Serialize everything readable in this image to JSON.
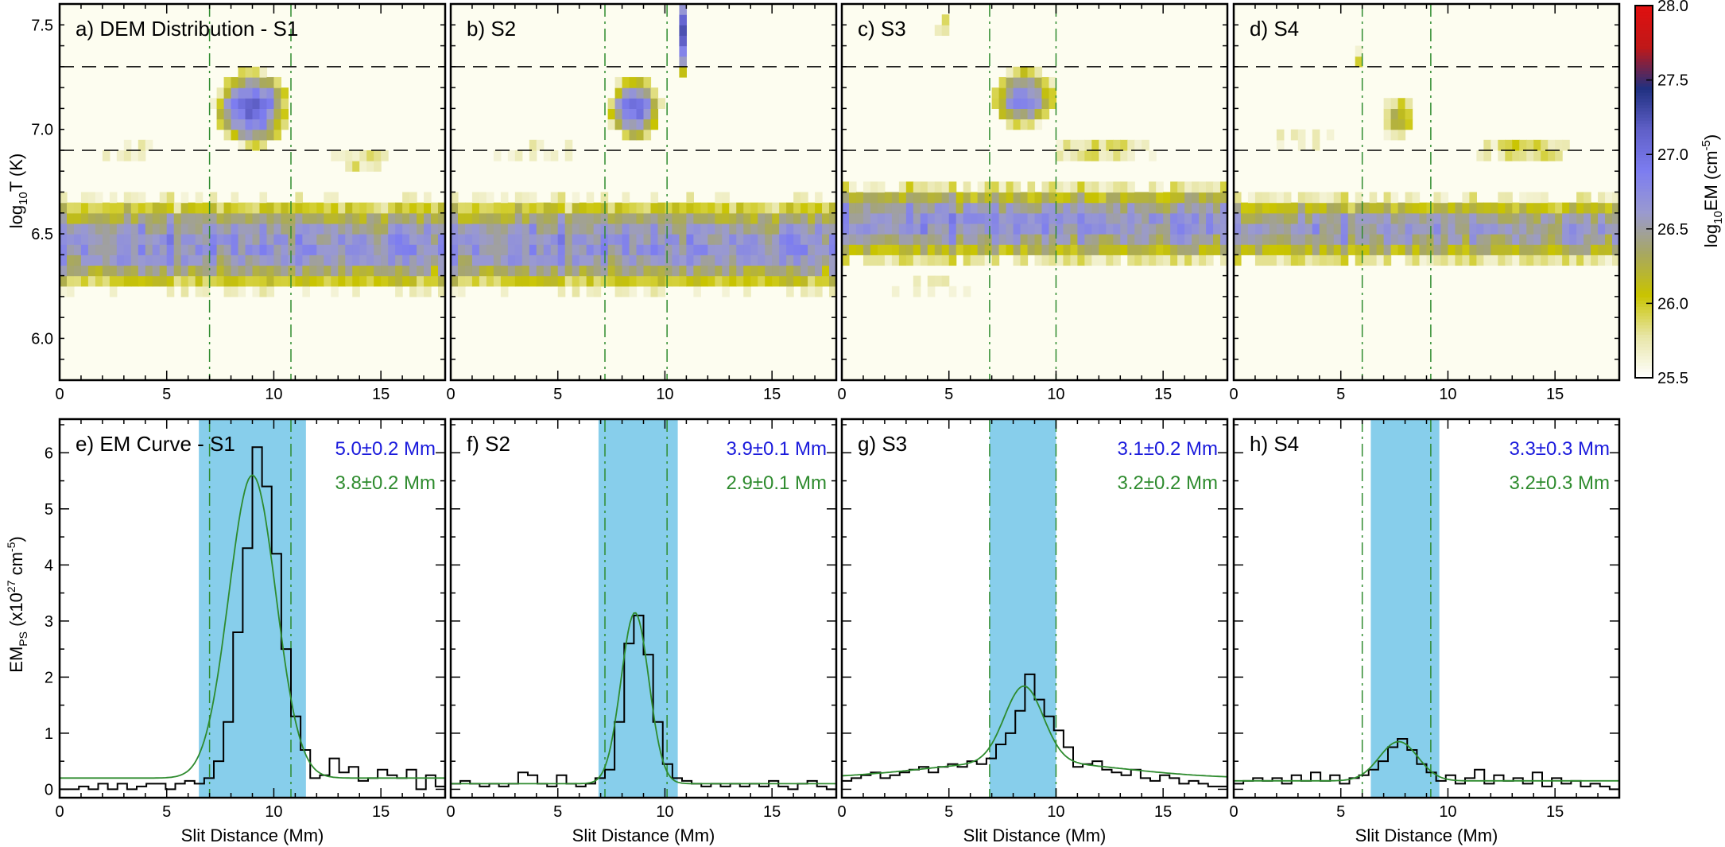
{
  "figure": {
    "colorbar": {
      "label_base": "log",
      "label_sub": "10",
      "label_main": "EM (cm",
      "label_sup": "-5",
      "label_close": ")",
      "range": [
        25.5,
        28.0
      ],
      "ticks": [
        "25.5",
        "26.0",
        "26.5",
        "27.0",
        "27.5",
        "28.0"
      ],
      "colors": [
        "#ffffff",
        "#e8e6a8",
        "#c9c400",
        "#a8a860",
        "#9a9ad0",
        "#7d7df0",
        "#6060c8",
        "#203080",
        "#c01818",
        "#e01010"
      ]
    },
    "top_ylabel": {
      "main": "log",
      "sub": "10",
      "rest": "T (K)"
    },
    "bottom_ylabel": {
      "main": "EM",
      "sub": "PS",
      "rest": " (x10",
      "sup": "27",
      "rest2": " cm",
      "sup2": "-5",
      "close": ")"
    },
    "xlabel": "Slit Distance (Mm)"
  },
  "chart_data": [
    {
      "type": "heatmap",
      "panel": "a",
      "title": "a) DEM Distribution - S1",
      "xlim": [
        0,
        18
      ],
      "ylim": [
        5.8,
        7.6
      ],
      "xticks": [
        "0",
        "5",
        "10",
        "15"
      ],
      "yticks": [
        "6.0",
        "6.5",
        "7.0",
        "7.5"
      ],
      "hlines": [
        6.9,
        7.3
      ],
      "vlines": [
        7.0,
        10.8
      ],
      "band": {
        "center": 6.45,
        "width": 0.2,
        "peak": 26.7
      },
      "blobs": [
        {
          "x": 9.0,
          "y": 7.1,
          "sx": 1.4,
          "sy": 0.15,
          "v": 27.1
        },
        {
          "x": 3.5,
          "y": 6.9,
          "sx": 4.0,
          "sy": 0.05,
          "v": 25.9
        },
        {
          "x": 14.0,
          "y": 6.85,
          "sx": 2.5,
          "sy": 0.06,
          "v": 25.95
        }
      ]
    },
    {
      "type": "heatmap",
      "panel": "b",
      "title": "b) S2",
      "xlim": [
        0,
        18
      ],
      "ylim": [
        5.8,
        7.6
      ],
      "xticks": [
        "0",
        "5",
        "10",
        "15"
      ],
      "yticks": [
        "6.0",
        "6.5",
        "7.0",
        "7.5"
      ],
      "hlines": [
        6.9,
        7.3
      ],
      "vlines": [
        7.2,
        10.1
      ],
      "band": {
        "center": 6.45,
        "width": 0.2,
        "peak": 26.7
      },
      "blobs": [
        {
          "x": 8.6,
          "y": 7.1,
          "sx": 1.0,
          "sy": 0.13,
          "v": 27.0
        },
        {
          "x": 10.8,
          "y": 7.45,
          "sx": 0.2,
          "sy": 0.15,
          "v": 27.2
        },
        {
          "x": 4.0,
          "y": 6.9,
          "sx": 4.0,
          "sy": 0.05,
          "v": 25.9
        }
      ]
    },
    {
      "type": "heatmap",
      "panel": "c",
      "title": "c) S3",
      "xlim": [
        0,
        18
      ],
      "ylim": [
        5.8,
        7.6
      ],
      "xticks": [
        "0",
        "5",
        "10",
        "15"
      ],
      "yticks": [
        "6.0",
        "6.5",
        "7.0",
        "7.5"
      ],
      "hlines": [
        6.9,
        7.3
      ],
      "vlines": [
        6.9,
        10.0
      ],
      "band": {
        "center": 6.55,
        "width": 0.17,
        "peak": 26.7
      },
      "blobs": [
        {
          "x": 8.5,
          "y": 7.15,
          "sx": 1.3,
          "sy": 0.13,
          "v": 26.8
        },
        {
          "x": 4.7,
          "y": 7.5,
          "sx": 0.3,
          "sy": 0.12,
          "v": 26.1
        },
        {
          "x": 12.0,
          "y": 6.9,
          "sx": 4.0,
          "sy": 0.07,
          "v": 25.95
        },
        {
          "x": 4.0,
          "y": 6.25,
          "sx": 4.0,
          "sy": 0.06,
          "v": 25.8
        }
      ]
    },
    {
      "type": "heatmap",
      "panel": "d",
      "title": "d) S4",
      "xlim": [
        0,
        18
      ],
      "ylim": [
        5.8,
        7.6
      ],
      "xticks": [
        "0",
        "5",
        "10",
        "15"
      ],
      "yticks": [
        "6.0",
        "6.5",
        "7.0",
        "7.5"
      ],
      "hlines": [
        6.9,
        7.3
      ],
      "vlines": [
        6.0,
        9.2
      ],
      "band": {
        "center": 6.52,
        "width": 0.15,
        "peak": 26.6
      },
      "blobs": [
        {
          "x": 7.7,
          "y": 7.05,
          "sx": 1.0,
          "sy": 0.12,
          "v": 26.2
        },
        {
          "x": 13.5,
          "y": 6.9,
          "sx": 3.5,
          "sy": 0.07,
          "v": 26.0
        },
        {
          "x": 3.0,
          "y": 6.95,
          "sx": 3.0,
          "sy": 0.06,
          "v": 25.85
        },
        {
          "x": 5.8,
          "y": 7.35,
          "sx": 0.2,
          "sy": 0.1,
          "v": 25.9
        }
      ]
    },
    {
      "type": "line",
      "panel": "e",
      "title": "e) EM Curve - S1",
      "xlim": [
        0,
        18
      ],
      "ylim": [
        -0.15,
        6.6
      ],
      "xticks": [
        "0",
        "5",
        "10",
        "15"
      ],
      "yticks": [
        "0",
        "1",
        "2",
        "3",
        "4",
        "5",
        "6"
      ],
      "shade": [
        6.5,
        11.5
      ],
      "vlines": [
        7.0,
        10.8
      ],
      "width_blue": "5.0±0.2 Mm",
      "width_green": "3.8±0.2 Mm",
      "fit": {
        "center": 9.0,
        "amp": 5.4,
        "sigma": 1.1,
        "base": 0.2
      },
      "x": [
        0.0,
        0.45,
        0.9,
        1.35,
        1.8,
        2.25,
        2.7,
        3.15,
        3.6,
        4.05,
        4.5,
        4.95,
        5.4,
        5.85,
        6.3,
        6.75,
        7.2,
        7.65,
        8.1,
        8.55,
        9.0,
        9.45,
        9.9,
        10.35,
        10.8,
        11.25,
        11.7,
        12.15,
        12.6,
        13.05,
        13.5,
        13.95,
        14.4,
        14.85,
        15.3,
        15.75,
        16.2,
        16.65,
        17.1,
        17.55
      ],
      "y": [
        0.0,
        0.0,
        0.05,
        0.0,
        0.1,
        0.0,
        0.1,
        0.0,
        0.05,
        0.1,
        0.1,
        0.0,
        0.1,
        0.15,
        0.1,
        0.2,
        0.5,
        1.2,
        2.8,
        4.3,
        6.1,
        5.4,
        4.2,
        2.5,
        1.3,
        0.7,
        0.2,
        0.25,
        0.55,
        0.3,
        0.4,
        0.15,
        0.2,
        0.35,
        0.25,
        0.2,
        0.35,
        0.0,
        0.25,
        0.05
      ]
    },
    {
      "type": "line",
      "panel": "f",
      "title": "f) S2",
      "xlim": [
        0,
        18
      ],
      "ylim": [
        -0.15,
        6.6
      ],
      "xticks": [
        "0",
        "5",
        "10",
        "15"
      ],
      "yticks": [
        "0",
        "1",
        "2",
        "3",
        "4",
        "5",
        "6"
      ],
      "shade": [
        6.9,
        10.6
      ],
      "vlines": [
        7.2,
        10.1
      ],
      "width_blue": "3.9±0.1 Mm",
      "width_green": "2.9±0.1 Mm",
      "fit": {
        "center": 8.6,
        "amp": 3.05,
        "sigma": 0.65,
        "base": 0.1
      },
      "x": [
        0.0,
        0.45,
        0.9,
        1.35,
        1.8,
        2.25,
        2.7,
        3.15,
        3.6,
        4.05,
        4.5,
        4.95,
        5.4,
        5.85,
        6.3,
        6.75,
        7.2,
        7.65,
        8.1,
        8.55,
        9.0,
        9.45,
        9.9,
        10.35,
        10.8,
        11.25,
        11.7,
        12.15,
        12.6,
        13.05,
        13.5,
        13.95,
        14.4,
        14.85,
        15.3,
        15.75,
        16.2,
        16.65,
        17.1,
        17.55
      ],
      "y": [
        0.1,
        0.15,
        0.1,
        0.05,
        0.1,
        0.05,
        0.1,
        0.3,
        0.25,
        0.1,
        0.05,
        0.25,
        0.1,
        0.05,
        0.1,
        0.2,
        0.35,
        1.2,
        2.6,
        3.1,
        2.4,
        1.2,
        0.45,
        0.2,
        0.15,
        0.1,
        0.05,
        0.1,
        0.05,
        0.1,
        0.05,
        0.1,
        0.05,
        0.15,
        0.05,
        0.0,
        0.1,
        0.15,
        0.05,
        0.0
      ]
    },
    {
      "type": "line",
      "panel": "g",
      "title": "g) S3",
      "xlim": [
        0,
        18
      ],
      "ylim": [
        -0.15,
        6.6
      ],
      "xticks": [
        "0",
        "5",
        "10",
        "15"
      ],
      "yticks": [
        "0",
        "1",
        "2",
        "3",
        "4",
        "5",
        "6"
      ],
      "shade": [
        6.9,
        10.0
      ],
      "vlines": [
        6.9,
        10.0
      ],
      "width_blue": "3.1±0.2 Mm",
      "width_green": "3.2±0.2 Mm",
      "fit": {
        "center": 8.5,
        "amp": 1.35,
        "sigma": 0.9,
        "base": 0.25,
        "skirt": 0.3,
        "skirt_sigma": 4.5
      },
      "x": [
        0.0,
        0.45,
        0.9,
        1.35,
        1.8,
        2.25,
        2.7,
        3.15,
        3.6,
        4.05,
        4.5,
        4.95,
        5.4,
        5.85,
        6.3,
        6.75,
        7.2,
        7.65,
        8.1,
        8.55,
        9.0,
        9.45,
        9.9,
        10.35,
        10.8,
        11.25,
        11.7,
        12.15,
        12.6,
        13.05,
        13.5,
        13.95,
        14.4,
        14.85,
        15.3,
        15.75,
        16.2,
        16.65,
        17.1,
        17.55
      ],
      "y": [
        0.15,
        0.2,
        0.25,
        0.3,
        0.2,
        0.25,
        0.3,
        0.35,
        0.4,
        0.3,
        0.4,
        0.45,
        0.4,
        0.5,
        0.45,
        0.55,
        0.8,
        1.0,
        1.4,
        2.05,
        1.6,
        1.3,
        1.05,
        0.75,
        0.4,
        0.45,
        0.5,
        0.35,
        0.3,
        0.25,
        0.35,
        0.2,
        0.15,
        0.25,
        0.2,
        0.1,
        0.15,
        0.1,
        0.05,
        0.05
      ]
    },
    {
      "type": "line",
      "panel": "h",
      "title": "h) S4",
      "xlim": [
        0,
        18
      ],
      "ylim": [
        -0.15,
        6.6
      ],
      "xticks": [
        "0",
        "5",
        "10",
        "15"
      ],
      "yticks": [
        "0",
        "1",
        "2",
        "3",
        "4",
        "5",
        "6"
      ],
      "shade": [
        6.4,
        9.6
      ],
      "vlines": [
        6.0,
        9.2
      ],
      "width_blue": "3.3±0.3 Mm",
      "width_green": "3.2±0.3 Mm",
      "fit": {
        "center": 7.7,
        "amp": 0.7,
        "sigma": 0.9,
        "base": 0.15
      },
      "x": [
        0.0,
        0.45,
        0.9,
        1.35,
        1.8,
        2.25,
        2.7,
        3.15,
        3.6,
        4.05,
        4.5,
        4.95,
        5.4,
        5.85,
        6.3,
        6.75,
        7.2,
        7.65,
        8.1,
        8.55,
        9.0,
        9.45,
        9.9,
        10.35,
        10.8,
        11.25,
        11.7,
        12.15,
        12.6,
        13.05,
        13.5,
        13.95,
        14.4,
        14.85,
        15.3,
        15.75,
        16.2,
        16.65,
        17.1,
        17.55
      ],
      "y": [
        0.1,
        0.15,
        0.2,
        0.15,
        0.2,
        0.1,
        0.25,
        0.15,
        0.3,
        0.15,
        0.25,
        0.1,
        0.2,
        0.25,
        0.35,
        0.5,
        0.75,
        0.9,
        0.7,
        0.45,
        0.3,
        0.15,
        0.25,
        0.1,
        0.2,
        0.35,
        0.1,
        0.25,
        0.15,
        0.2,
        0.1,
        0.3,
        0.05,
        0.2,
        0.1,
        0.15,
        0.05,
        0.1,
        0.05,
        0.0
      ]
    }
  ]
}
